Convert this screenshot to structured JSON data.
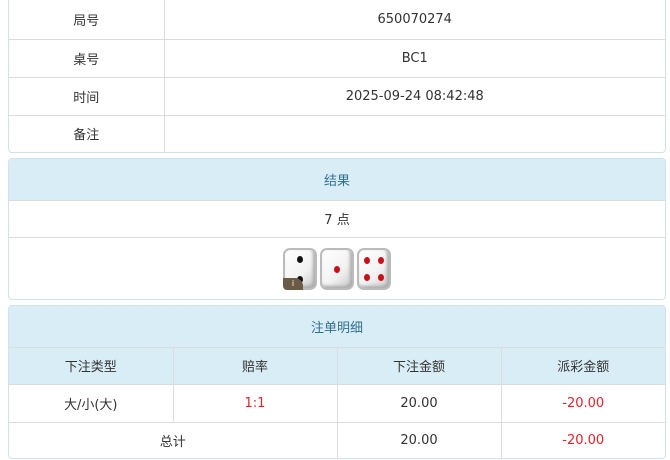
{
  "info": [
    {
      "label": "局号",
      "value": "650070274"
    },
    {
      "label": "桌号",
      "value": "BC1"
    },
    {
      "label": "时间",
      "value": "2025-09-24 08:42:48"
    },
    {
      "label": "备注",
      "value": ""
    }
  ],
  "result": {
    "title": "结果",
    "points": "7 点",
    "dice": [
      2,
      1,
      4
    ],
    "badge": "i"
  },
  "details": {
    "title": "注单明细",
    "columns": [
      "下注类型",
      "赔率",
      "下注金额",
      "派彩金额"
    ],
    "rows": [
      {
        "type": "大/小(大)",
        "odds": "1:1",
        "bet": "20.00",
        "payout": "-20.00"
      }
    ],
    "total": {
      "label": "总计",
      "bet": "20.00",
      "payout": "-20.00"
    }
  },
  "colors": {
    "header_bg": "#d9edf7",
    "header_text": "#31708f",
    "negative": "#e4232a"
  }
}
